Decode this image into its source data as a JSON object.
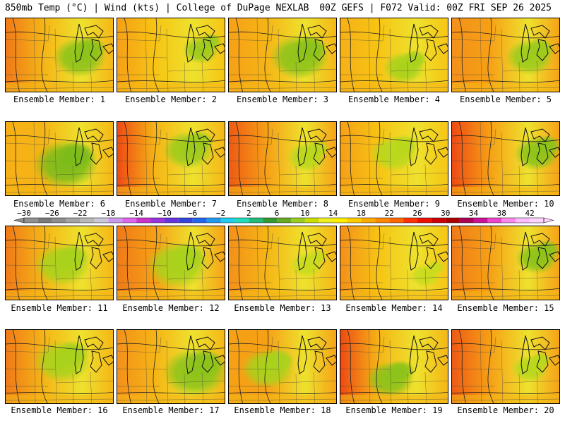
{
  "header": {
    "left": "850mb Temp (°C) | Wind (kts) | College of DuPage NEXLAB",
    "right": "00Z GEFS | F072 Valid: 00Z FRI SEP 26 2025"
  },
  "colorbar": {
    "labels": [
      "-30",
      "-26",
      "-22",
      "-18",
      "-14",
      "-10",
      "-6",
      "-2",
      "2",
      "6",
      "10",
      "14",
      "18",
      "22",
      "26",
      "30",
      "34",
      "38",
      "42"
    ],
    "min": -30,
    "max": 44,
    "step": 2,
    "colors": [
      "#909090",
      "#7a7a7a",
      "#8e8e8e",
      "#a4a4a4",
      "#b8b8b8",
      "#c8c8d8",
      "#cc99ee",
      "#dd66ee",
      "#cc33cc",
      "#9933dd",
      "#6633dd",
      "#3344dd",
      "#2266ee",
      "#2299ee",
      "#22ccee",
      "#22ddbb",
      "#22bb77",
      "#339933",
      "#66aa22",
      "#99cc22",
      "#ccdd00",
      "#eeee22",
      "#ffee00",
      "#ffcc00",
      "#ffaa00",
      "#ff8800",
      "#ff6600",
      "#ff3300",
      "#ee1100",
      "#cc0000",
      "#aa0000",
      "#aa0055",
      "#cc1199",
      "#ee44cc",
      "#ff88ee",
      "#ffbbff",
      "#ffd5ff"
    ]
  },
  "members": [
    {
      "label": "Ensemble Member: 1"
    },
    {
      "label": "Ensemble Member: 2"
    },
    {
      "label": "Ensemble Member: 3"
    },
    {
      "label": "Ensemble Member: 4"
    },
    {
      "label": "Ensemble Member: 5"
    },
    {
      "label": "Ensemble Member: 6"
    },
    {
      "label": "Ensemble Member: 7"
    },
    {
      "label": "Ensemble Member: 8"
    },
    {
      "label": "Ensemble Member: 9"
    },
    {
      "label": "Ensemble Member: 10"
    },
    {
      "label": "Ensemble Member: 11"
    },
    {
      "label": "Ensemble Member: 12"
    },
    {
      "label": "Ensemble Member: 13"
    },
    {
      "label": "Ensemble Member: 14"
    },
    {
      "label": "Ensemble Member: 15"
    },
    {
      "label": "Ensemble Member: 16"
    },
    {
      "label": "Ensemble Member: 17"
    },
    {
      "label": "Ensemble Member: 18"
    },
    {
      "label": "Ensemble Member: 19"
    },
    {
      "label": "Ensemble Member: 20"
    }
  ]
}
